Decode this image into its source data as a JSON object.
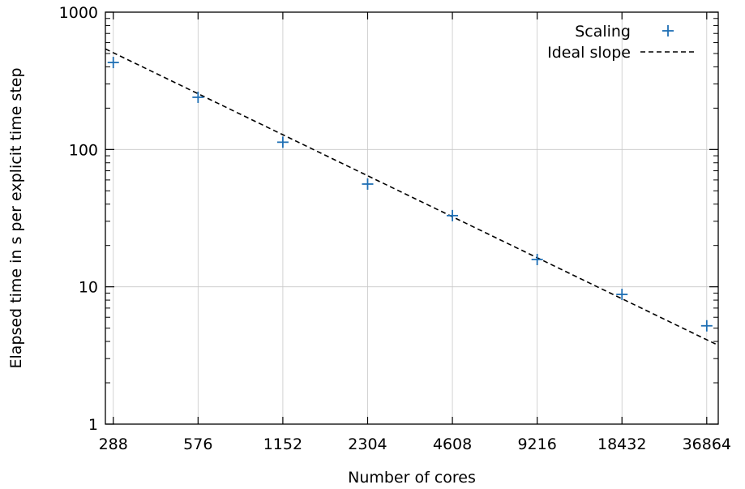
{
  "chart_data": {
    "type": "scatter",
    "xscale": "log2",
    "yscale": "log10",
    "xlabel": "Number of cores",
    "ylabel": "Elapsed time in s per explicit time step",
    "x_ticks": [
      288,
      576,
      1152,
      2304,
      4608,
      9216,
      18432,
      36864
    ],
    "x_tick_labels": [
      "288",
      "576",
      "1152",
      "2304",
      "4608",
      "9216",
      "18432",
      "36864"
    ],
    "y_ticks": [
      1,
      10,
      100,
      1000
    ],
    "y_tick_labels": [
      "1",
      "10",
      "100",
      "1000"
    ],
    "xlim": [
      270,
      40500
    ],
    "ylim": [
      1,
      1000
    ],
    "grid": true,
    "legend_position": "top-right",
    "series": [
      {
        "name": "Scaling",
        "marker": "plus",
        "color": "#1f6fb4",
        "x": [
          288,
          576,
          1152,
          2304,
          4608,
          9216,
          18432,
          36864
        ],
        "y": [
          430,
          240,
          113,
          56,
          33,
          15.8,
          8.8,
          5.2
        ]
      },
      {
        "name": "Ideal slope",
        "style": "dashed-line",
        "color": "#000000",
        "x": [
          270,
          40500
        ],
        "y": [
          540,
          3.75
        ]
      }
    ]
  }
}
